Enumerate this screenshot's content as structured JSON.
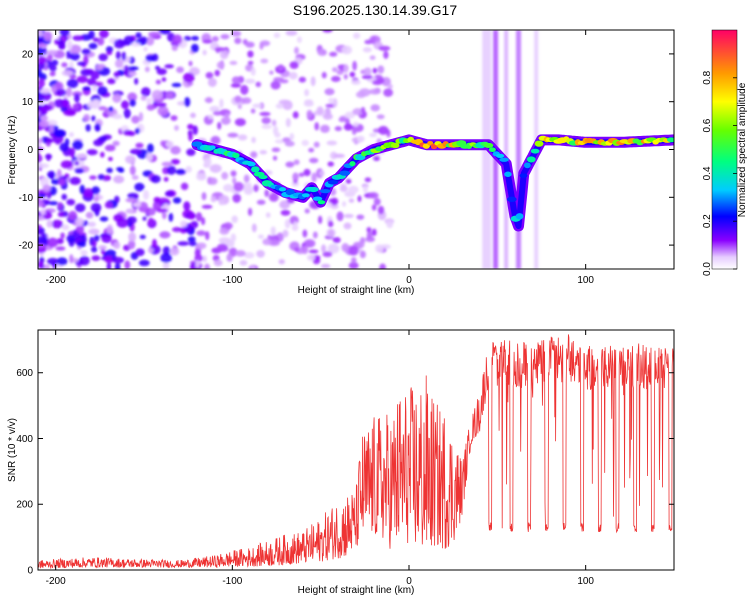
{
  "title": "S196.2025.130.14.39.G17",
  "chart_data": [
    {
      "type": "heatmap",
      "title": "",
      "xlabel": "Height of straight line (km)",
      "ylabel": "Frequency (Hz)",
      "xlim": [
        -210,
        150
      ],
      "ylim": [
        -25,
        25
      ],
      "xticks": [
        -200,
        -100,
        0,
        100
      ],
      "yticks": [
        -20,
        -10,
        0,
        10,
        20
      ],
      "colorbar": {
        "label": "Normalized spectral amplitude",
        "range": [
          0.0,
          1.0
        ],
        "ticks": [
          0.0,
          0.2,
          0.4,
          0.6,
          0.8
        ],
        "colormap": "rainbow (purple-blue-cyan-green-yellow-orange-red)"
      },
      "ridge": {
        "description": "dominant frequency trace vs height",
        "x": [
          -120,
          -110,
          -100,
          -90,
          -80,
          -70,
          -60,
          -55,
          -50,
          -45,
          -40,
          -30,
          -20,
          -10,
          0,
          10,
          20,
          30,
          45,
          55,
          60,
          62,
          65,
          75,
          85,
          100,
          120,
          150
        ],
        "y": [
          1,
          0,
          -1,
          -3,
          -7,
          -9,
          -10,
          -8,
          -11,
          -7,
          -6,
          -2,
          0,
          1,
          2,
          1,
          1,
          1,
          1,
          -3,
          -14,
          -16,
          -5,
          2,
          2,
          1.5,
          1.5,
          2
        ],
        "amplitude": [
          0.3,
          0.4,
          0.45,
          0.35,
          0.4,
          0.35,
          0.3,
          0.35,
          0.4,
          0.35,
          0.35,
          0.45,
          0.55,
          0.55,
          0.6,
          0.8,
          0.75,
          0.6,
          0.55,
          0.3,
          0.35,
          0.4,
          0.3,
          0.7,
          0.6,
          0.75,
          0.8,
          0.6
        ]
      }
    },
    {
      "type": "line",
      "title": "",
      "xlabel": "Height of straight line (km)",
      "ylabel": "SNR (10 * v/v)",
      "xlim": [
        -210,
        150
      ],
      "ylim": [
        0,
        730
      ],
      "xticks": [
        -200,
        -100,
        0,
        100
      ],
      "yticks": [
        0,
        200,
        400,
        600
      ],
      "color": "#ee3333",
      "series": [
        {
          "envelope_x": [
            -210,
            -180,
            -160,
            -130,
            -110,
            -100,
            -90,
            -80,
            -70,
            -60,
            -50,
            -40,
            -35,
            -30,
            -27,
            -20,
            -15,
            -10,
            -5,
            0,
            5,
            10,
            15,
            20,
            25,
            30,
            35,
            40,
            45,
            50,
            60,
            70,
            80,
            90,
            100,
            110,
            120,
            130,
            140,
            150
          ],
          "upper": [
            30,
            40,
            35,
            30,
            45,
            60,
            70,
            90,
            110,
            120,
            160,
            220,
            240,
            250,
            420,
            470,
            480,
            490,
            560,
            560,
            580,
            600,
            510,
            500,
            430,
            340,
            460,
            550,
            710,
            700,
            700,
            690,
            720,
            720,
            690,
            690,
            680,
            690,
            680,
            680
          ],
          "lower": [
            5,
            8,
            8,
            8,
            8,
            10,
            10,
            12,
            15,
            20,
            25,
            35,
            40,
            60,
            90,
            100,
            90,
            60,
            70,
            80,
            60,
            50,
            70,
            60,
            80,
            160,
            380,
            420,
            560,
            120,
            120,
            130,
            120,
            120,
            120,
            120,
            120,
            120,
            120,
            120
          ],
          "dips_x": [
            46,
            58,
            68,
            78,
            88,
            98,
            108,
            118,
            128,
            138,
            148
          ],
          "dip_value": 130
        }
      ]
    }
  ]
}
